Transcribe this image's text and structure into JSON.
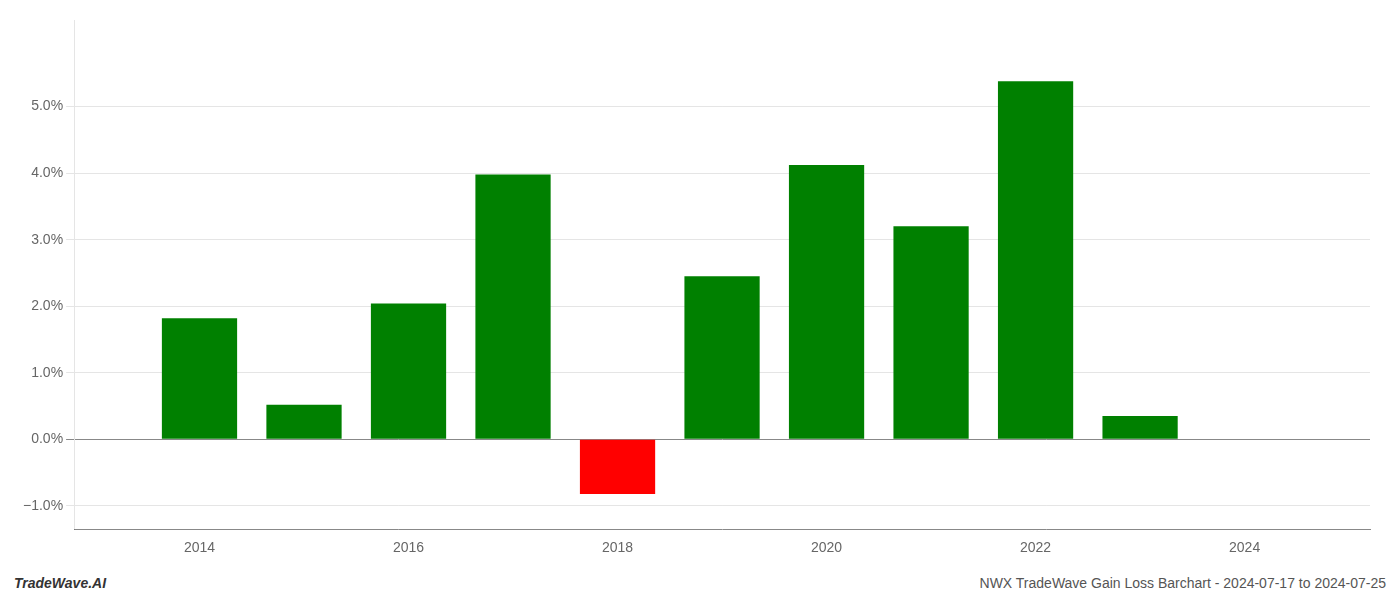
{
  "chart_data": {
    "type": "bar",
    "x": [
      2014,
      2015,
      2016,
      2017,
      2018,
      2019,
      2020,
      2021,
      2022,
      2023
    ],
    "values": [
      1.82,
      0.52,
      2.04,
      3.98,
      -0.82,
      2.45,
      4.12,
      3.2,
      5.38,
      0.35
    ],
    "colors": [
      "#008000",
      "#008000",
      "#008000",
      "#008000",
      "#ff0000",
      "#008000",
      "#008000",
      "#008000",
      "#008000",
      "#008000"
    ],
    "xlim": [
      2012.8,
      2025.2
    ],
    "xticks": [
      2014,
      2016,
      2018,
      2020,
      2022,
      2024
    ],
    "ylim": [
      -1.35,
      6.3
    ],
    "yticks": [
      {
        "value": -1.0,
        "label": "−1.0%"
      },
      {
        "value": 0.0,
        "label": "0.0%"
      },
      {
        "value": 1.0,
        "label": "1.0%"
      },
      {
        "value": 2.0,
        "label": "2.0%"
      },
      {
        "value": 3.0,
        "label": "3.0%"
      },
      {
        "value": 4.0,
        "label": "4.0%"
      },
      {
        "value": 5.0,
        "label": "5.0%"
      }
    ],
    "grid": true,
    "annotations": [
      "TradeWave.AI",
      "NWX TradeWave Gain Loss Barchart - 2024-07-17 to 2024-07-25"
    ]
  }
}
